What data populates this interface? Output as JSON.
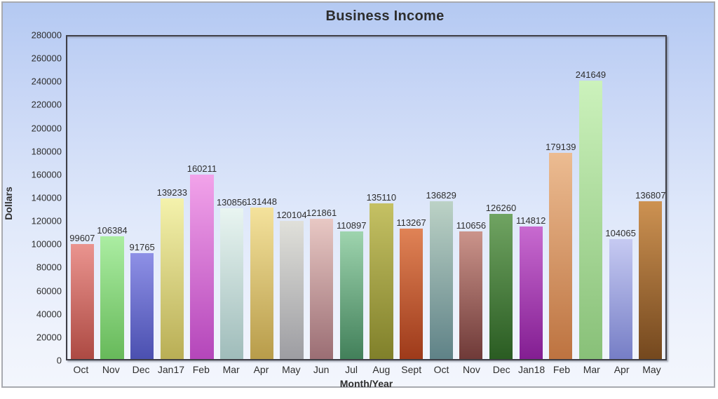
{
  "chart_data": {
    "type": "bar",
    "title": "Business Income",
    "xlabel": "Month/Year",
    "ylabel": "Dollars",
    "categories": [
      "Oct",
      "Nov",
      "Dec",
      "Jan17",
      "Feb",
      "Mar",
      "Apr",
      "May",
      "Jun",
      "Jul",
      "Aug",
      "Sept",
      "Oct",
      "Nov",
      "Dec",
      "Jan18",
      "Feb",
      "Mar",
      "Apr",
      "May"
    ],
    "values": [
      99607,
      106384,
      91765,
      139233,
      160211,
      130856,
      131448,
      120104,
      121861,
      110897,
      135110,
      113267,
      136829,
      110656,
      126260,
      114812,
      179139,
      241649,
      104065,
      136807
    ],
    "bar_colors": [
      {
        "top": "#ea948f",
        "bottom": "#ad4a43"
      },
      {
        "top": "#abeda2",
        "bottom": "#67b95a"
      },
      {
        "top": "#8e90e6",
        "bottom": "#4b50b0"
      },
      {
        "top": "#f4f2ac",
        "bottom": "#b9ae55"
      },
      {
        "top": "#f2a3ea",
        "bottom": "#b446ba"
      },
      {
        "top": "#e9f5f1",
        "bottom": "#9fbcba"
      },
      {
        "top": "#f4e29c",
        "bottom": "#b89c4a"
      },
      {
        "top": "#e0e0da",
        "bottom": "#9d9da2"
      },
      {
        "top": "#e8c8c4",
        "bottom": "#9b6e74"
      },
      {
        "top": "#9ed4ae",
        "bottom": "#42805a"
      },
      {
        "top": "#c5c164",
        "bottom": "#80802a"
      },
      {
        "top": "#e08356",
        "bottom": "#9e3a1a"
      },
      {
        "top": "#bcd2c6",
        "bottom": "#5f8287"
      },
      {
        "top": "#cb948b",
        "bottom": "#6f3a38"
      },
      {
        "top": "#70a462",
        "bottom": "#2a5c22"
      },
      {
        "top": "#c86ad0",
        "bottom": "#831e92"
      },
      {
        "top": "#ecbc92",
        "bottom": "#bd7340"
      },
      {
        "top": "#ccf2bc",
        "bottom": "#88c078"
      },
      {
        "top": "#c6caf2",
        "bottom": "#767ec6"
      },
      {
        "top": "#cd9252",
        "bottom": "#74481e"
      }
    ],
    "ylim": [
      0,
      280000
    ],
    "ytick_step": 20000,
    "ytick_values": [
      0,
      20000,
      40000,
      60000,
      80000,
      100000,
      120000,
      140000,
      160000,
      180000,
      200000,
      220000,
      240000,
      260000,
      280000
    ],
    "value_labels_shown": true,
    "legend": "none",
    "grid": "off",
    "colors": {
      "background_top": "#b4c9f2",
      "background_bottom": "#f3f6fd",
      "plot_border": "#3f3f46",
      "outer_border": "#a8aab0",
      "text": "#2e2e2e"
    }
  }
}
